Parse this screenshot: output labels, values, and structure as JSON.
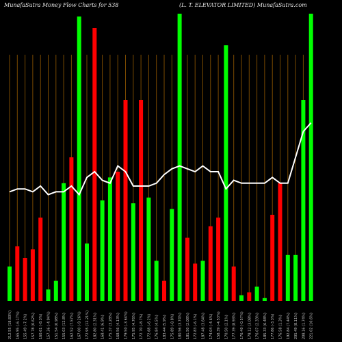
{
  "header": {
    "left_title": "MunafaSutra  Money Flow  Charts for 538",
    "right_title": "(L. T. ELEVATOR LIMITED) MunafaSutra.com"
  },
  "colors": {
    "background": "#000000",
    "up": "#00ff00",
    "down": "#ff0000",
    "line": "#ffffff",
    "grid": "#7a4a00",
    "label": "#c8c8c8"
  },
  "chart_data": {
    "type": "bar",
    "title": "MunafaSutra Money Flow Charts for 538 (L. T. ELEVATOR LIMITED)",
    "ylim": [
      0,
      100
    ],
    "grid": true,
    "categories": [
      "212.55 (18.83%)",
      "165.95 (-6.17%)",
      "155.49 (-7.2%)",
      "157.78 (0.62%)",
      "160.61 (-8.3%)",
      "157.36 (-4.94%)",
      "151.54 (0.98%)",
      "155.03 (12.8%)",
      "162.52 (7.57%)",
      "167.00 (-9.26%)",
      "172.95 (12.21%)",
      "182.80 (2.31%)",
      "168.41 (6.9%)",
      "175.37 (3.28%)",
      "168.56 (4.13%)",
      "179.50 (-3.64%)",
      "175.95 (4.76%)",
      "172.70 (-8.7%)",
      "172.68 (-6.2%)",
      "176.84 (4.5%)",
      "183.44 (5.9%)",
      "175.89 (-8.8%)",
      "180.56 (3.74%)",
      "181.50 (2.08%)",
      "172.83 (-6.1%)",
      "187.48 (3.64%)",
      "174.04 (-4.6%)",
      "158.39 (-4.53%)",
      "170.50 (2.1%)",
      "177.39 (8.93%)",
      "176.40 (-0.57%)",
      "178.12 (3.08%)",
      "176.07 (2.33%)",
      "185.33 (6.48%)",
      "177.86 (-3.3%)",
      "176.58 (1.3%)",
      "192.84 (7.44%)",
      "205.49 (8.11%)",
      "208.16 (1.74%)",
      "221.02 (10.6%)"
    ],
    "series": [
      {
        "type": "bar",
        "colors": [
          "up",
          "down",
          "down",
          "down",
          "down",
          "up",
          "up",
          "up",
          "down",
          "up",
          "up",
          "down",
          "up",
          "up",
          "down",
          "down",
          "up",
          "down",
          "up",
          "up",
          "down",
          "up",
          "up",
          "down",
          "down",
          "up",
          "down",
          "down",
          "up",
          "down",
          "up",
          "down",
          "up",
          "up",
          "down",
          "down",
          "up",
          "up",
          "up",
          "up"
        ],
        "values": [
          12,
          19,
          15,
          18,
          29,
          4,
          7,
          41,
          50,
          99,
          20,
          95,
          35,
          43,
          45,
          70,
          34,
          70,
          36,
          14,
          7,
          32,
          100,
          22,
          13,
          14,
          26,
          29,
          89,
          12,
          2,
          3,
          5,
          1,
          30,
          41,
          16,
          16,
          70,
          100
        ]
      },
      {
        "type": "line",
        "values": [
          38,
          39,
          39,
          38,
          40,
          37,
          38,
          38,
          40,
          37,
          43,
          45,
          42,
          41,
          47,
          45,
          40,
          40,
          40,
          41,
          44,
          46,
          47,
          46,
          45,
          47,
          45,
          45,
          39,
          42,
          41,
          41,
          41,
          41,
          43,
          41,
          41,
          50,
          59,
          62
        ]
      }
    ]
  }
}
